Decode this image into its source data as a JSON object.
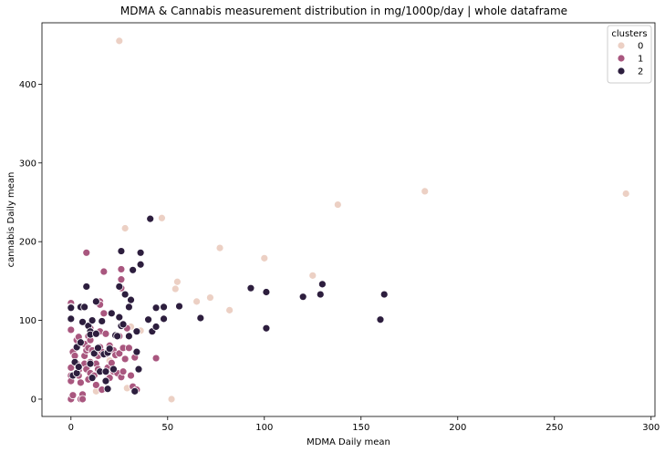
{
  "chart_data": {
    "type": "scatter",
    "title": "MDMA & Cannabis measurement distribution in mg/1000p/day | whole dataframe",
    "xlabel": "MDMA Daily mean",
    "ylabel": "cannabis Daily mean",
    "xlim": [
      -15,
      302
    ],
    "ylim": [
      -22,
      478
    ],
    "xticks": [
      0,
      50,
      100,
      150,
      200,
      250,
      300
    ],
    "yticks": [
      0,
      100,
      200,
      300,
      400
    ],
    "grid": false,
    "legend": {
      "title": "clusters",
      "placement": "top-right"
    },
    "series": [
      {
        "name": "0",
        "color": "#ecd0c4",
        "points": [
          [
            25,
            455
          ],
          [
            28,
            217
          ],
          [
            47,
            230
          ],
          [
            77,
            192
          ],
          [
            100,
            179
          ],
          [
            138,
            247
          ],
          [
            183,
            264
          ],
          [
            287,
            261
          ],
          [
            125,
            157
          ],
          [
            55,
            149
          ],
          [
            54,
            140
          ],
          [
            72,
            129
          ],
          [
            65,
            124
          ],
          [
            82,
            113
          ],
          [
            36,
            87
          ],
          [
            31,
            92
          ],
          [
            29,
            14
          ],
          [
            52,
            0
          ],
          [
            13,
            10
          ],
          [
            3,
            38
          ],
          [
            6,
            43
          ],
          [
            20,
            49
          ]
        ]
      },
      {
        "name": "1",
        "color": "#a9577f",
        "points": [
          [
            0,
            122
          ],
          [
            0,
            117
          ],
          [
            0,
            88
          ],
          [
            0,
            40
          ],
          [
            0,
            30
          ],
          [
            0,
            23
          ],
          [
            0,
            0
          ],
          [
            1,
            5
          ],
          [
            1,
            60
          ],
          [
            2,
            55
          ],
          [
            3,
            45
          ],
          [
            3,
            75
          ],
          [
            4,
            79
          ],
          [
            4,
            37
          ],
          [
            4,
            30
          ],
          [
            5,
            21
          ],
          [
            5,
            0
          ],
          [
            6,
            6
          ],
          [
            6,
            0
          ],
          [
            7,
            45
          ],
          [
            7,
            55
          ],
          [
            7,
            70
          ],
          [
            8,
            186
          ],
          [
            8,
            62
          ],
          [
            8,
            38
          ],
          [
            9,
            80
          ],
          [
            9,
            65
          ],
          [
            9,
            25
          ],
          [
            10,
            90
          ],
          [
            10,
            75
          ],
          [
            10,
            47
          ],
          [
            10,
            33
          ],
          [
            11,
            100
          ],
          [
            11,
            62
          ],
          [
            12,
            30
          ],
          [
            13,
            18
          ],
          [
            13,
            45
          ],
          [
            14,
            38
          ],
          [
            14,
            55
          ],
          [
            15,
            124
          ],
          [
            15,
            120
          ],
          [
            15,
            86
          ],
          [
            15,
            66
          ],
          [
            16,
            60
          ],
          [
            16,
            12
          ],
          [
            17,
            162
          ],
          [
            17,
            109
          ],
          [
            18,
            57
          ],
          [
            18,
            83
          ],
          [
            19,
            40
          ],
          [
            20,
            27
          ],
          [
            20,
            68
          ],
          [
            21,
            110
          ],
          [
            21,
            46
          ],
          [
            22,
            35
          ],
          [
            22,
            62
          ],
          [
            23,
            56
          ],
          [
            24,
            33
          ],
          [
            25,
            58
          ],
          [
            25,
            80
          ],
          [
            26,
            165
          ],
          [
            26,
            152
          ],
          [
            26,
            141
          ],
          [
            26,
            28
          ],
          [
            27,
            35
          ],
          [
            27,
            65
          ],
          [
            28,
            51
          ],
          [
            29,
            90
          ],
          [
            30,
            65
          ],
          [
            31,
            30
          ],
          [
            32,
            16
          ],
          [
            33,
            53
          ],
          [
            34,
            12
          ],
          [
            44,
            52
          ]
        ]
      },
      {
        "name": "2",
        "color": "#2d1e3e",
        "points": [
          [
            0,
            102
          ],
          [
            0,
            116
          ],
          [
            1,
            30
          ],
          [
            2,
            47
          ],
          [
            3,
            66
          ],
          [
            3,
            33
          ],
          [
            4,
            41
          ],
          [
            5,
            117
          ],
          [
            5,
            72
          ],
          [
            6,
            98
          ],
          [
            7,
            117
          ],
          [
            8,
            143
          ],
          [
            9,
            93
          ],
          [
            10,
            86
          ],
          [
            10,
            82
          ],
          [
            10,
            45
          ],
          [
            11,
            27
          ],
          [
            11,
            100
          ],
          [
            12,
            58
          ],
          [
            13,
            124
          ],
          [
            13,
            83
          ],
          [
            14,
            65
          ],
          [
            15,
            35
          ],
          [
            16,
            99
          ],
          [
            17,
            57
          ],
          [
            18,
            35
          ],
          [
            18,
            23
          ],
          [
            19,
            13
          ],
          [
            19,
            59
          ],
          [
            20,
            64
          ],
          [
            21,
            109
          ],
          [
            22,
            38
          ],
          [
            23,
            81
          ],
          [
            24,
            80
          ],
          [
            25,
            143
          ],
          [
            25,
            104
          ],
          [
            26,
            188
          ],
          [
            26,
            93
          ],
          [
            27,
            95
          ],
          [
            28,
            133
          ],
          [
            30,
            80
          ],
          [
            30,
            117
          ],
          [
            31,
            126
          ],
          [
            32,
            164
          ],
          [
            33,
            10
          ],
          [
            34,
            86
          ],
          [
            34,
            60
          ],
          [
            35,
            38
          ],
          [
            36,
            186
          ],
          [
            36,
            171
          ],
          [
            40,
            101
          ],
          [
            41,
            229
          ],
          [
            42,
            86
          ],
          [
            44,
            92
          ],
          [
            44,
            116
          ],
          [
            48,
            117
          ],
          [
            48,
            102
          ],
          [
            56,
            118
          ],
          [
            67,
            103
          ],
          [
            93,
            141
          ],
          [
            101,
            136
          ],
          [
            101,
            90
          ],
          [
            120,
            130
          ],
          [
            129,
            133
          ],
          [
            130,
            146
          ],
          [
            160,
            101
          ],
          [
            162,
            133
          ]
        ]
      }
    ]
  }
}
